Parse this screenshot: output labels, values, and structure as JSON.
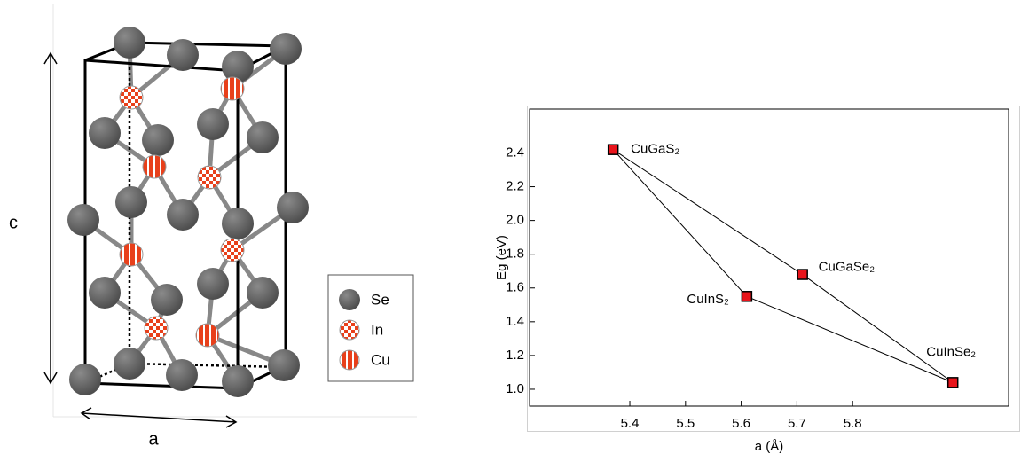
{
  "structure": {
    "c_label": "c",
    "a_label": "a",
    "legend": [
      "Se",
      "In",
      "Cu"
    ]
  },
  "chart_data": {
    "type": "scatter",
    "xlabel": "a (Å)",
    "ylabel": "Eg (eV)",
    "xlim": [
      5.22,
      6.08
    ],
    "ylim": [
      0.9,
      2.66
    ],
    "xticks": [
      5.4,
      5.5,
      5.6,
      5.7,
      5.8
    ],
    "yticks": [
      {
        "value": 1.0,
        "label": "1.0"
      },
      1.2,
      1.4,
      1.6,
      1.8,
      {
        "value": 2.0,
        "label": "2.0"
      },
      2.2,
      2.4
    ],
    "labels": [
      "CuGaS₂",
      "CuGaSe₂",
      "CuInSe₂",
      "CuInS₂"
    ],
    "series": [
      {
        "color": "#e8141b",
        "x": [
          5.37,
          5.71,
          5.98,
          5.61
        ],
        "values": [
          2.42,
          1.68,
          1.04,
          1.55
        ]
      }
    ]
  }
}
